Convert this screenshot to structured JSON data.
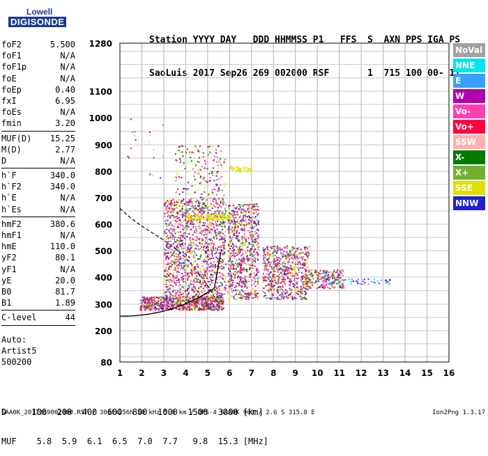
{
  "logo": {
    "line1": "Lowell",
    "line2": "DIGISONDE"
  },
  "header": {
    "line1": "Station YYYY DAY   DDD HHMMSS P1   FFS  S  AXN PPS IGA PS",
    "line2": "SaoLuis 2017 Sep26 269 002000 RSF       1  715 100 00- 11"
  },
  "params": [
    {
      "name": "foF2",
      "value": "5.500"
    },
    {
      "name": "foF1",
      "value": "N/A"
    },
    {
      "name": "foF1p",
      "value": "N/A"
    },
    {
      "name": "foE",
      "value": "N/A"
    },
    {
      "name": "foEp",
      "value": "0.40"
    },
    {
      "name": "fxI",
      "value": "6.95"
    },
    {
      "name": "foEs",
      "value": "N/A"
    },
    {
      "name": "fmin",
      "value": "3.20"
    },
    {
      "sep": true
    },
    {
      "name": "MUF(D)",
      "value": "15.25"
    },
    {
      "name": "M(D)",
      "value": "2.77"
    },
    {
      "name": "D",
      "value": "N/A"
    },
    {
      "sep": true
    },
    {
      "name": "h`F",
      "value": "340.0"
    },
    {
      "name": "h`F2",
      "value": "340.0"
    },
    {
      "name": "h`E",
      "value": "N/A"
    },
    {
      "name": "h`Es",
      "value": "N/A"
    },
    {
      "sep": true
    },
    {
      "name": "hmF2",
      "value": "380.6"
    },
    {
      "name": "hmF1",
      "value": "N/A"
    },
    {
      "name": "hmE",
      "value": "110.0"
    },
    {
      "name": "yF2",
      "value": "80.1"
    },
    {
      "name": "yF1",
      "value": "N/A"
    },
    {
      "name": "yE",
      "value": "20.0"
    },
    {
      "name": "B0",
      "value": "81.7"
    },
    {
      "name": "B1",
      "value": "1.89"
    },
    {
      "sep": true
    },
    {
      "name": "C-level",
      "value": "44"
    },
    {
      "sep": true
    }
  ],
  "auto": {
    "line1": "Auto:",
    "line2": "Artist5",
    "line3": "500200"
  },
  "legend": [
    {
      "label": "NoVal",
      "bg": "#a0a0a0",
      "fg": "#ffffff"
    },
    {
      "label": "NNE",
      "bg": "#00e5ee",
      "fg": "#ffffff"
    },
    {
      "label": "E",
      "bg": "#3aa0ff",
      "fg": "#ffffff"
    },
    {
      "label": "W",
      "bg": "#b000b0",
      "fg": "#ffffff"
    },
    {
      "label": "Vo-",
      "bg": "#ff40b0",
      "fg": "#ffffff"
    },
    {
      "label": "Vo+",
      "bg": "#ff0040",
      "fg": "#ffffff"
    },
    {
      "label": "SSW",
      "bg": "#ffb0b0",
      "fg": "#ffffff"
    },
    {
      "label": "X-",
      "bg": "#007a00",
      "fg": "#ffffff"
    },
    {
      "label": "X+",
      "bg": "#70b030",
      "fg": "#ffffff"
    },
    {
      "label": "SSE",
      "bg": "#e0e000",
      "fg": "#ffffff"
    },
    {
      "label": "NNW",
      "bg": "#2020d0",
      "fg": "#ffffff"
    }
  ],
  "chart_data": {
    "type": "scatter",
    "x_ticks": [
      "1",
      "2",
      "3",
      "4",
      "5",
      "6",
      "7",
      "8",
      "9",
      "10",
      "11",
      "12",
      "13",
      "14",
      "15",
      "16"
    ],
    "y_ticks": [
      "80",
      "200",
      "300",
      "400",
      "500",
      "600",
      "700",
      "800",
      "900",
      "1000",
      "1100",
      "1280"
    ],
    "xlim": [
      1,
      16
    ],
    "ylim": [
      80,
      1280
    ],
    "y_scale": "nonlinear",
    "grid": true,
    "echo_clusters": [
      {
        "region": "F-trace main",
        "x": [
          1.9,
          5.7
        ],
        "y": [
          280,
          330
        ],
        "density": "high"
      },
      {
        "region": "F-trace spread",
        "x": [
          3,
          7.4
        ],
        "y": [
          320,
          680
        ],
        "density": "high"
      },
      {
        "region": "oblique spread",
        "x": [
          7.4,
          11.2
        ],
        "y": [
          310,
          520
        ],
        "density": "medium"
      },
      {
        "region": "tail",
        "x": [
          10,
          13
        ],
        "y": [
          370,
          400
        ],
        "density": "low"
      },
      {
        "region": "multi-hop",
        "x": [
          3.5,
          7
        ],
        "y": [
          600,
          900
        ],
        "density": "low"
      }
    ]
  },
  "d_table": {
    "line1": "D     100  200  400  600  800  1000  1500  3000 [km]",
    "line2": "MUF    5.8  5.9  6.1  6.5  7.0  7.7   9.8  15.3 [MHz]"
  },
  "footer": {
    "left": "SAA0K_2017269002000.RSF / 300fx256h 50 kHz 5.0 km / DPS-4 SAA0K 903 / 2.6 S 315.8 E",
    "right": "Ion2Png 1.3.17"
  }
}
